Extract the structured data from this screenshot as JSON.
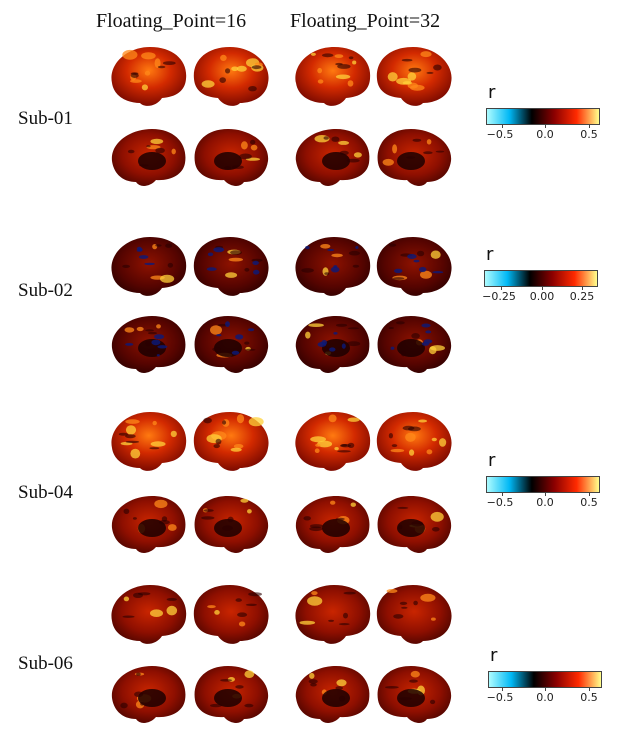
{
  "column_titles": [
    "Floating_Point=16",
    "Floating_Point=32"
  ],
  "colorbar_gradient": [
    "#aefcff",
    "#00b8f5",
    "#000000",
    "#8a0000",
    "#ff2a00",
    "#ffff8c"
  ],
  "rows": [
    {
      "label": "Sub-01",
      "colorbar": {
        "symbol": "r",
        "ticks": [
          "−0.5",
          "0.0",
          "0.5"
        ]
      }
    },
    {
      "label": "Sub-02",
      "colorbar": {
        "symbol": "r",
        "ticks": [
          "−0.25",
          "0.00",
          "0.25"
        ]
      }
    },
    {
      "label": "Sub-04",
      "colorbar": {
        "symbol": "r",
        "ticks": [
          "−0.5",
          "0.0",
          "0.5"
        ]
      }
    },
    {
      "label": "Sub-06",
      "colorbar": {
        "symbol": "r",
        "ticks": [
          "−0.5",
          "0.0",
          "0.5"
        ]
      }
    }
  ]
}
